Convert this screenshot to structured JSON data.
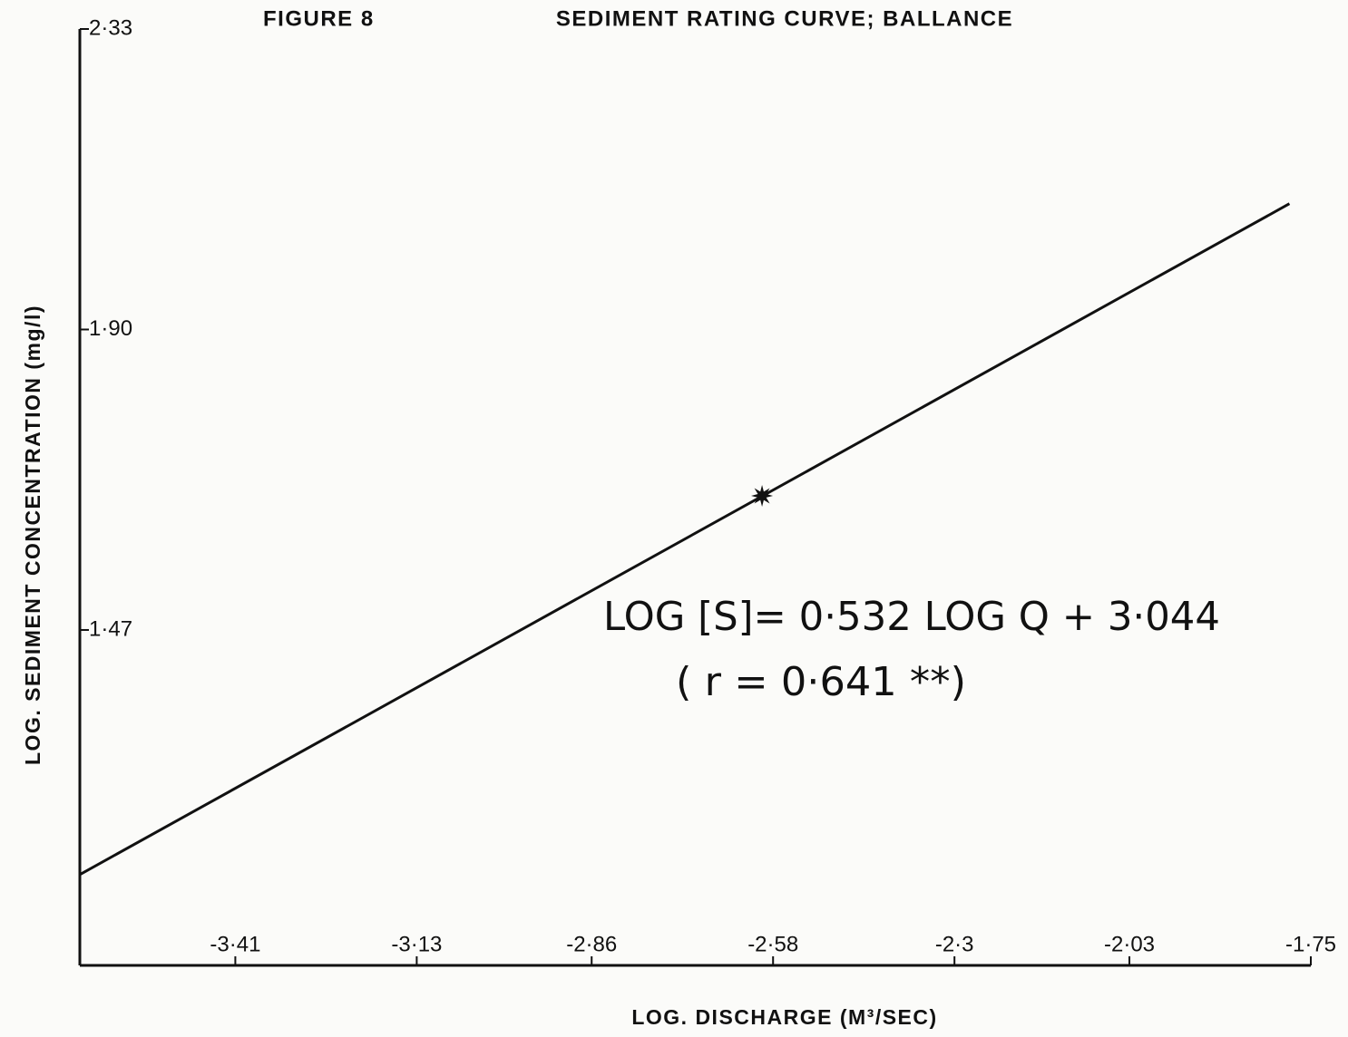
{
  "chart_data": {
    "type": "line",
    "figure_label": "FIGURE 8",
    "title": "SEDIMENT RATING CURVE; BALLANCE",
    "xlabel": "LOG. DISCHARGE (M³/SEC)",
    "ylabel": "LOG. SEDIMENT CONCENTRATION (mg/l)",
    "annotations": [
      "LOG [S]= 0·532   LOG Q + 3·044",
      "( r =  0·641 **)"
    ],
    "x": [
      -3.65,
      -1.783
    ],
    "values": [
      1.12,
      2.08
    ],
    "color": "#111111",
    "marker": {
      "x": -2.597,
      "y": 1.662
    },
    "xlim": [
      -3.65,
      -1.75
    ],
    "ylim": [
      0.99,
      2.33
    ],
    "xticks": [
      {
        "value": -3.41,
        "label": "-3·41"
      },
      {
        "value": -3.13,
        "label": "-3·13"
      },
      {
        "value": -2.86,
        "label": "-2·86"
      },
      {
        "value": -2.58,
        "label": "-2·58"
      },
      {
        "value": -2.3,
        "label": "-2·3"
      },
      {
        "value": -2.03,
        "label": "-2·03"
      },
      {
        "value": -1.75,
        "label": "-1·75"
      }
    ],
    "yticks": [
      {
        "value": 2.33,
        "label": "2·33"
      },
      {
        "value": 1.9,
        "label": "1·90"
      },
      {
        "value": 1.47,
        "label": "1·47"
      }
    ],
    "grid": false
  }
}
